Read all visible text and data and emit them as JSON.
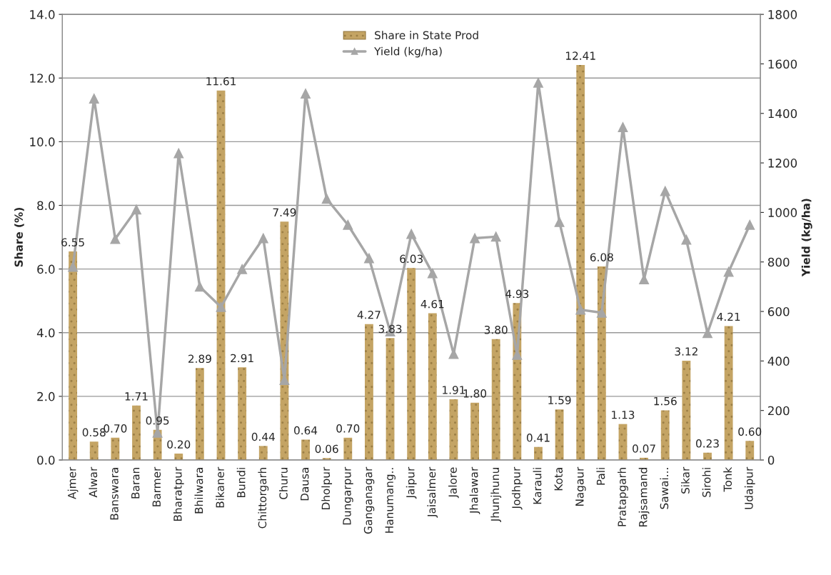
{
  "chart_data": {
    "type": "bar",
    "categories": [
      "Ajmer",
      "Alwar",
      "Banswara",
      "Baran",
      "Barmer",
      "Bharatpur",
      "Bhilwara",
      "Bikaner",
      "Bundi",
      "Chittorgarh",
      "Churu",
      "Dausa",
      "Dholpur",
      "Dungarpur",
      "Ganganagar",
      "Hanumang..",
      "Jaipur",
      "Jaisalmer",
      "Jalore",
      "Jhalawar",
      "Jhunjhunu",
      "Jodhpur",
      "Karauli",
      "Kota",
      "Nagaur",
      "Pali",
      "Pratapgarh",
      "Rajsamand",
      "Sawai...",
      "Sikar",
      "Sirohi",
      "Tonk",
      "Udaipur"
    ],
    "series": [
      {
        "name": "Share in State Prod",
        "color": "#c4a464",
        "value_labels": [
          "6.55",
          "0.58",
          "0.70",
          "1.71",
          "0.95",
          "0.20",
          "2.89",
          "11.61",
          "2.91",
          "0.44",
          "7.49",
          "0.64",
          "0.06",
          "0.70",
          "4.27",
          "3.83",
          "6.03",
          "4.61",
          "1.91",
          "1.80",
          "3.80",
          "4.93",
          "0.41",
          "1.59",
          "12.41",
          "6.08",
          "1.13",
          "0.07",
          "1.56",
          "3.12",
          "0.23",
          "4.21",
          "0.60"
        ],
        "values": [
          6.55,
          0.58,
          0.7,
          1.71,
          0.95,
          0.2,
          2.89,
          11.61,
          2.91,
          0.44,
          7.49,
          0.64,
          0.06,
          0.7,
          4.27,
          3.83,
          6.03,
          4.61,
          1.91,
          1.8,
          3.8,
          4.93,
          0.41,
          1.59,
          12.41,
          6.08,
          1.13,
          0.07,
          1.56,
          3.12,
          0.23,
          4.21,
          0.6
        ]
      },
      {
        "name": "Yield (kg/ha)",
        "type": "line",
        "axis": "y2",
        "color": "#a6a6a6",
        "marker": "triangle",
        "line_style": "solid",
        "values": [
          780,
          1460,
          893,
          1012,
          110,
          1239,
          700,
          618,
          771,
          896,
          323,
          1480,
          1055,
          950,
          815,
          519,
          913,
          754,
          428,
          896,
          902,
          425,
          1524,
          961,
          607,
          595,
          1344,
          730,
          1086,
          890,
          513,
          760,
          950
        ]
      }
    ],
    "ylabel": "Share (%)",
    "y2label": "Yield (kg/ha)",
    "ylim": [
      0,
      14
    ],
    "yticks": [
      {
        "value": 0,
        "label": "0.0"
      },
      {
        "value": 2,
        "label": "2.0"
      },
      {
        "value": 4,
        "label": "4.0"
      },
      {
        "value": 6,
        "label": "6.0"
      },
      {
        "value": 8,
        "label": "8.0"
      },
      {
        "value": 10,
        "label": "10.0"
      },
      {
        "value": 12,
        "label": "12.0"
      },
      {
        "value": 14,
        "label": "14.0"
      }
    ],
    "y2lim": [
      0,
      1800
    ],
    "y2ticks": [
      0,
      200,
      400,
      600,
      800,
      1000,
      1200,
      1400,
      1600,
      1800
    ],
    "grid": "y",
    "legend": "top"
  }
}
